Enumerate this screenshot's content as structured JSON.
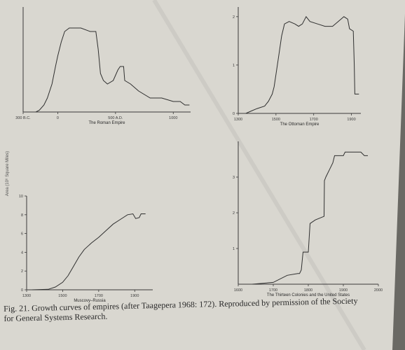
{
  "caption": {
    "line1": "Fig. 21. Growth curves of empires (after Taagepera 1968: 172). Reproduced by permission of the Society",
    "line2": "for General Systems Research."
  },
  "shared_ylabel": "Area (10⁶ Square Miles)",
  "chart_data": [
    {
      "type": "line",
      "title": "The Roman Empire",
      "xlabel": "The Roman Empire",
      "ylabel": "",
      "xlim": [
        -300,
        1150
      ],
      "ylim": [
        0,
        3
      ],
      "x_ticks": [
        {
          "v": -300,
          "label": "300 B.C."
        },
        {
          "v": 0,
          "label": "0"
        },
        {
          "v": 500,
          "label": "500 A.D."
        },
        {
          "v": 1000,
          "label": "1000"
        }
      ],
      "y_ticks": [],
      "series": [
        {
          "points": [
            [
              -190,
              0
            ],
            [
              -160,
              0.05
            ],
            [
              -120,
              0.2
            ],
            [
              -90,
              0.4
            ],
            [
              -50,
              0.8
            ],
            [
              -20,
              1.3
            ],
            [
              0,
              1.6
            ],
            [
              30,
              2.0
            ],
            [
              60,
              2.3
            ],
            [
              100,
              2.4
            ],
            [
              200,
              2.4
            ],
            [
              280,
              2.3
            ],
            [
              330,
              2.3
            ],
            [
              350,
              1.8
            ],
            [
              370,
              1.1
            ],
            [
              395,
              0.9
            ],
            [
              430,
              0.8
            ],
            [
              480,
              0.9
            ],
            [
              520,
              1.2
            ],
            [
              540,
              1.3
            ],
            [
              570,
              1.3
            ],
            [
              580,
              0.9
            ],
            [
              630,
              0.8
            ],
            [
              700,
              0.6
            ],
            [
              800,
              0.4
            ],
            [
              900,
              0.4
            ],
            [
              1000,
              0.3
            ],
            [
              1060,
              0.3
            ],
            [
              1100,
              0.2
            ],
            [
              1140,
              0.2
            ]
          ]
        }
      ]
    },
    {
      "type": "line",
      "title": "The Ottoman Empire",
      "xlabel": "The Ottoman Empire",
      "ylabel": "",
      "xlim": [
        1300,
        1950
      ],
      "ylim": [
        0,
        2.2
      ],
      "x_ticks": [
        {
          "v": 1300,
          "label": "1300"
        },
        {
          "v": 1500,
          "label": "1500"
        },
        {
          "v": 1700,
          "label": "1700"
        },
        {
          "v": 1900,
          "label": "1900"
        }
      ],
      "y_ticks": [
        {
          "v": 0,
          "label": "0"
        },
        {
          "v": 1,
          "label": "1"
        },
        {
          "v": 2,
          "label": "2"
        }
      ],
      "series": [
        {
          "points": [
            [
              1340,
              0
            ],
            [
              1370,
              0.05
            ],
            [
              1400,
              0.1
            ],
            [
              1440,
              0.15
            ],
            [
              1460,
              0.25
            ],
            [
              1480,
              0.4
            ],
            [
              1490,
              0.55
            ],
            [
              1500,
              0.8
            ],
            [
              1515,
              1.2
            ],
            [
              1530,
              1.6
            ],
            [
              1545,
              1.85
            ],
            [
              1570,
              1.9
            ],
            [
              1600,
              1.85
            ],
            [
              1620,
              1.8
            ],
            [
              1640,
              1.85
            ],
            [
              1660,
              2.0
            ],
            [
              1680,
              1.9
            ],
            [
              1720,
              1.85
            ],
            [
              1760,
              1.8
            ],
            [
              1800,
              1.8
            ],
            [
              1830,
              1.9
            ],
            [
              1860,
              2.0
            ],
            [
              1880,
              1.95
            ],
            [
              1890,
              1.75
            ],
            [
              1910,
              1.7
            ],
            [
              1915,
              1.0
            ],
            [
              1918,
              0.4
            ],
            [
              1940,
              0.4
            ]
          ]
        }
      ]
    },
    {
      "type": "line",
      "title": "Muscovy–Russia",
      "xlabel": "Muscovy–Russia",
      "ylabel": "",
      "xlim": [
        1300,
        2000
      ],
      "ylim": [
        0,
        10
      ],
      "x_ticks": [
        {
          "v": 1300,
          "label": "1300"
        },
        {
          "v": 1500,
          "label": "1500"
        },
        {
          "v": 1700,
          "label": "1700"
        },
        {
          "v": 1900,
          "label": "1900"
        }
      ],
      "y_ticks": [
        {
          "v": 0,
          "label": "0"
        },
        {
          "v": 2,
          "label": "2"
        },
        {
          "v": 4,
          "label": "4"
        },
        {
          "v": 6,
          "label": "6"
        },
        {
          "v": 8,
          "label": "8"
        },
        {
          "v": 10,
          "label": "10"
        }
      ],
      "series": [
        {
          "points": [
            [
              1330,
              0
            ],
            [
              1420,
              0.05
            ],
            [
              1460,
              0.3
            ],
            [
              1500,
              0.8
            ],
            [
              1530,
              1.5
            ],
            [
              1560,
              2.5
            ],
            [
              1590,
              3.5
            ],
            [
              1620,
              4.3
            ],
            [
              1660,
              5.0
            ],
            [
              1700,
              5.6
            ],
            [
              1740,
              6.3
            ],
            [
              1780,
              7.0
            ],
            [
              1820,
              7.5
            ],
            [
              1860,
              8.0
            ],
            [
              1890,
              8.1
            ],
            [
              1905,
              7.6
            ],
            [
              1925,
              7.7
            ],
            [
              1935,
              8.1
            ],
            [
              1960,
              8.1
            ]
          ]
        }
      ]
    },
    {
      "type": "line",
      "title": "The Thirteen Colonies and the United States",
      "xlabel": "The Thirteen Colonies and the United States",
      "ylabel": "",
      "xlim": [
        1600,
        2000
      ],
      "ylim": [
        0,
        4
      ],
      "x_ticks": [
        {
          "v": 1600,
          "label": "1600"
        },
        {
          "v": 1700,
          "label": "1700"
        },
        {
          "v": 1800,
          "label": "1800"
        },
        {
          "v": 1900,
          "label": "1900"
        },
        {
          "v": 2000,
          "label": "2000"
        }
      ],
      "y_ticks": [
        {
          "v": 1,
          "label": "1"
        },
        {
          "v": 2,
          "label": "2"
        },
        {
          "v": 3,
          "label": "3"
        }
      ],
      "series": [
        {
          "points": [
            [
              1640,
              0
            ],
            [
              1700,
              0.05
            ],
            [
              1740,
              0.25
            ],
            [
              1770,
              0.3
            ],
            [
              1775,
              0.3
            ],
            [
              1780,
              0.4
            ],
            [
              1785,
              0.9
            ],
            [
              1800,
              0.9
            ],
            [
              1805,
              1.7
            ],
            [
              1820,
              1.8
            ],
            [
              1845,
              1.9
            ],
            [
              1846,
              2.9
            ],
            [
              1850,
              3.0
            ],
            [
              1855,
              3.1
            ],
            [
              1860,
              3.2
            ],
            [
              1870,
              3.4
            ],
            [
              1875,
              3.6
            ],
            [
              1900,
              3.6
            ],
            [
              1905,
              3.7
            ],
            [
              1950,
              3.7
            ],
            [
              1960,
              3.6
            ],
            [
              1970,
              3.6
            ]
          ]
        }
      ]
    }
  ]
}
